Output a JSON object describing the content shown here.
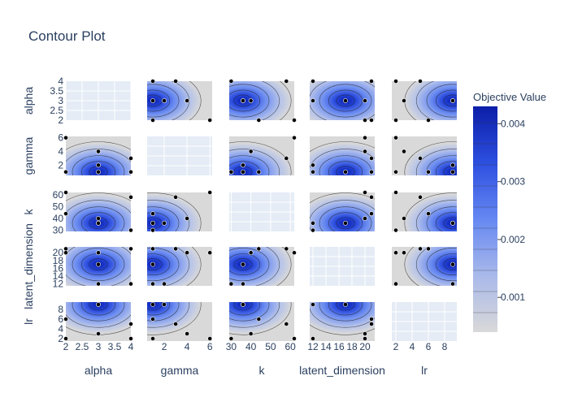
{
  "chart_data": {
    "type": "contour-matrix",
    "title": "Contour Plot",
    "params": [
      "alpha",
      "gamma",
      "k",
      "latent_dimension",
      "lr"
    ],
    "ranges": {
      "alpha": [
        2,
        4
      ],
      "gamma": [
        0.5,
        6.2
      ],
      "k": [
        29,
        62
      ],
      "latent_dimension": [
        11.5,
        21.5
      ],
      "lr": [
        1.5,
        9.5
      ]
    },
    "ticks": {
      "alpha": [
        "2",
        "2.5",
        "3",
        "3.5",
        "4"
      ],
      "gamma": [
        "2",
        "4",
        "6"
      ],
      "k": [
        "30",
        "40",
        "50",
        "60"
      ],
      "latent_dimension": [
        "12",
        "14",
        "16",
        "18",
        "20"
      ],
      "lr": [
        "2",
        "4",
        "6",
        "8"
      ]
    },
    "tick_values": {
      "alpha": [
        2,
        2.5,
        3,
        3.5,
        4
      ],
      "gamma": [
        2,
        4,
        6
      ],
      "k": [
        30,
        40,
        50,
        60
      ],
      "latent_dimension": [
        12,
        14,
        16,
        18,
        20
      ],
      "lr": [
        2,
        4,
        6,
        8
      ]
    },
    "y_ticks": {
      "alpha": [
        "2",
        "2.5",
        "3",
        "3.5",
        "4"
      ],
      "gamma": [
        "2",
        "4",
        "6"
      ],
      "k": [
        "30",
        "40",
        "50",
        "60"
      ],
      "latent_dimension": [
        "12",
        "14",
        "16",
        "18",
        "20"
      ],
      "lr": [
        "2",
        "4",
        "6",
        "8"
      ]
    },
    "trials": [
      {
        "alpha": 3,
        "gamma": 1,
        "k": 36,
        "latent_dimension": 17,
        "lr": 9
      },
      {
        "alpha": 3,
        "gamma": 4,
        "k": 40,
        "latent_dimension": 20,
        "lr": 3
      },
      {
        "alpha": 4,
        "gamma": 3,
        "k": 58,
        "latent_dimension": 21,
        "lr": 5
      },
      {
        "alpha": 4,
        "gamma": 1,
        "k": 30,
        "latent_dimension": 12,
        "lr": 2
      },
      {
        "alpha": 2,
        "gamma": 1,
        "k": 44,
        "latent_dimension": 21,
        "lr": 6
      },
      {
        "alpha": 2,
        "gamma": 6,
        "k": 62,
        "latent_dimension": 20,
        "lr": 2
      },
      {
        "alpha": 3,
        "gamma": 2,
        "k": 36,
        "latent_dimension": 12,
        "lr": 9
      }
    ],
    "colorbar": {
      "title": "Objective Value",
      "ticks": [
        "0.001",
        "0.002",
        "0.003",
        "0.004"
      ],
      "tick_values": [
        0.001,
        0.002,
        0.003,
        0.004
      ],
      "range": [
        0.0004,
        0.0043
      ]
    }
  }
}
